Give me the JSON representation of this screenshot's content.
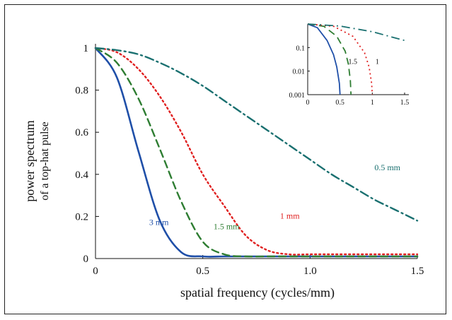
{
  "chart_data": [
    {
      "type": "line",
      "xlabel": "spatial frequency (cycles/mm)",
      "ylabel": "power spectrum",
      "ylabel2": "of a top-hat pulse",
      "xlim": [
        0,
        1.5
      ],
      "ylim": [
        0,
        1
      ],
      "x_ticks": [
        "0",
        "0.5",
        "1.0",
        "1.5"
      ],
      "y_ticks": [
        "0",
        "0.2",
        "0.4",
        "0.6",
        "0.8",
        "1"
      ],
      "grid": false,
      "x": [
        0,
        0.1,
        0.2,
        0.3,
        0.4,
        0.5,
        0.6,
        0.7,
        0.8,
        0.9,
        1.0,
        1.1,
        1.2,
        1.3,
        1.4,
        1.5
      ],
      "series": [
        {
          "name": "3 mm",
          "color": "#1f4fa8",
          "dash": "solid",
          "values": [
            1,
            0.86,
            0.51,
            0.18,
            0.03,
            0.01,
            0.01,
            0.01,
            0.01,
            0.01,
            0.01,
            0.01,
            0.01,
            0.01,
            0.01,
            0.01
          ]
        },
        {
          "name": "1.5 mm",
          "color": "#2e7d32",
          "dash": "dash",
          "values": [
            1,
            0.93,
            0.76,
            0.52,
            0.27,
            0.08,
            0.02,
            0.01,
            0.01,
            0.01,
            0.01,
            0.01,
            0.01,
            0.01,
            0.01,
            0.01
          ]
        },
        {
          "name": "1 mm",
          "color": "#e02020",
          "dash": "dot",
          "values": [
            1,
            0.98,
            0.9,
            0.77,
            0.6,
            0.4,
            0.25,
            0.11,
            0.04,
            0.02,
            0.02,
            0.02,
            0.02,
            0.02,
            0.02,
            0.02
          ]
        },
        {
          "name": "0.5 mm",
          "color": "#1a7070",
          "dash": "dashdot",
          "values": [
            1,
            0.99,
            0.97,
            0.93,
            0.88,
            0.82,
            0.75,
            0.68,
            0.61,
            0.54,
            0.47,
            0.4,
            0.34,
            0.28,
            0.23,
            0.18
          ]
        }
      ]
    },
    {
      "type": "line",
      "inset": true,
      "scale": "log-y",
      "xlim": [
        0,
        1.5
      ],
      "ylim": [
        0.001,
        1
      ],
      "x_ticks": [
        "0",
        "0.5",
        "1",
        "1.5"
      ],
      "y_ticks": [
        "0.001",
        "0.01",
        "0.1"
      ],
      "series": [
        {
          "name": "3 mm",
          "color": "#1f4fa8",
          "dash": "solid",
          "x": [
            0,
            0.15,
            0.3,
            0.4,
            0.45,
            0.49,
            0.5
          ],
          "values": [
            1,
            0.7,
            0.2,
            0.05,
            0.015,
            0.003,
            0.001
          ]
        },
        {
          "name": "1.5 mm",
          "color": "#2e7d32",
          "dash": "dash",
          "x": [
            0,
            0.25,
            0.45,
            0.58,
            0.63,
            0.66,
            0.67
          ],
          "values": [
            1,
            0.8,
            0.3,
            0.07,
            0.02,
            0.004,
            0.001
          ]
        },
        {
          "name": "1 mm",
          "color": "#e02020",
          "dash": "dot",
          "x": [
            0,
            0.4,
            0.7,
            0.88,
            0.95,
            0.99,
            1.0
          ],
          "values": [
            1,
            0.8,
            0.3,
            0.06,
            0.015,
            0.003,
            0.001
          ]
        },
        {
          "name": "0.5 mm",
          "color": "#1a7070",
          "dash": "dashdot",
          "x": [
            0,
            0.5,
            1.0,
            1.5
          ],
          "values": [
            1,
            0.82,
            0.47,
            0.2
          ]
        }
      ],
      "labels": [
        "1.5",
        "1"
      ]
    }
  ]
}
